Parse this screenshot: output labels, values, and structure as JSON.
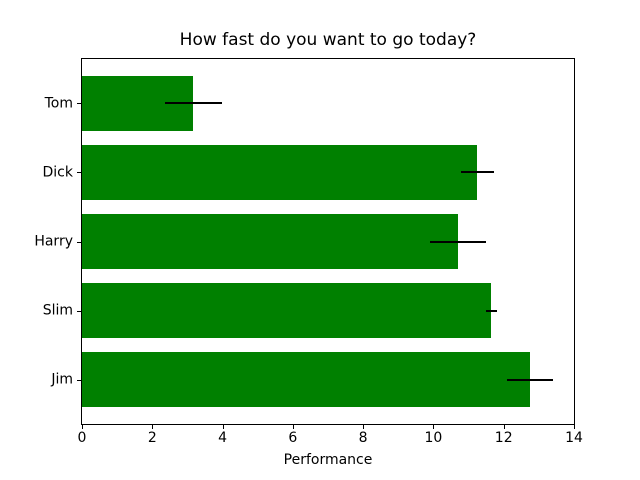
{
  "chart_data": {
    "type": "bar",
    "orientation": "horizontal",
    "title": "How fast do you want to go today?",
    "xlabel": "Performance",
    "ylabel": "",
    "categories": [
      "Tom",
      "Dick",
      "Harry",
      "Slim",
      "Jim"
    ],
    "values": [
      3.17,
      11.25,
      10.71,
      11.65,
      12.75
    ],
    "errors": [
      0.8,
      0.47,
      0.8,
      0.16,
      0.66
    ],
    "xlim": [
      0,
      14
    ],
    "x_ticks": [
      0,
      2,
      4,
      6,
      8,
      10,
      12,
      14
    ],
    "ylim": [
      -0.64,
      4.64
    ],
    "y_inverted": true,
    "bar_height_units": 0.8,
    "grid": false,
    "legend_position": "none",
    "bar_color": "#008000",
    "error_color": "#000000",
    "axis_color": "#000000",
    "background_color": "#ffffff"
  }
}
